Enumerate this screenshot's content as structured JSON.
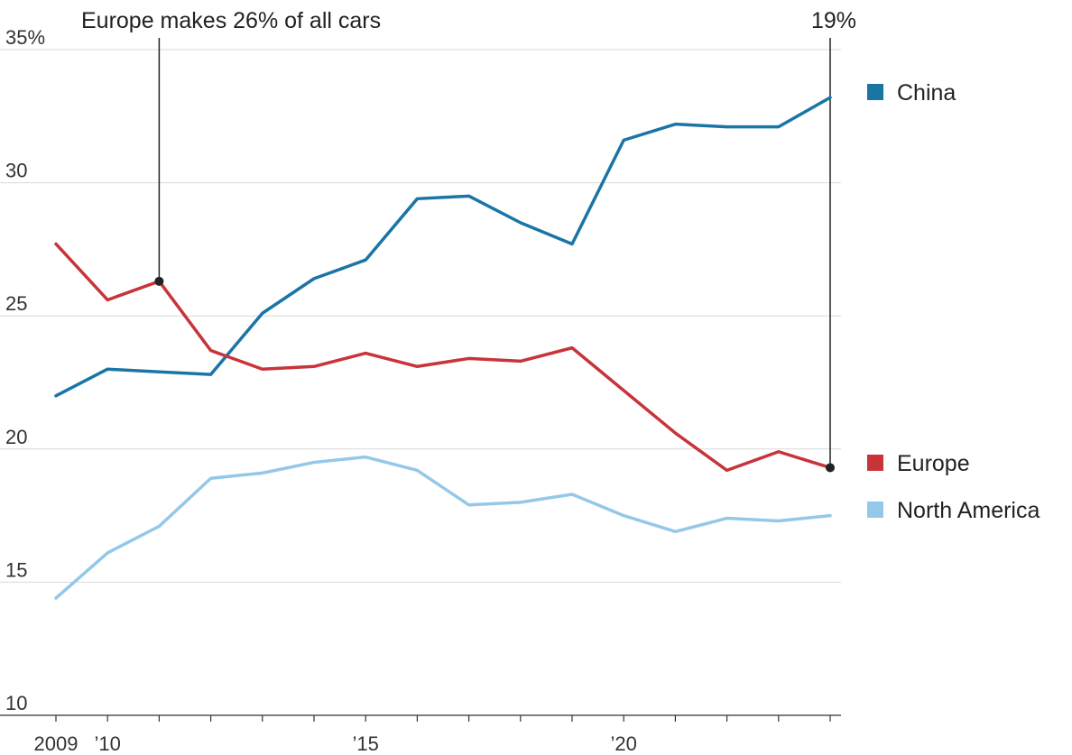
{
  "chart_data": {
    "type": "line",
    "title": "",
    "xlabel": "",
    "ylabel": "",
    "x": [
      2009,
      2010,
      2011,
      2012,
      2013,
      2014,
      2015,
      2016,
      2017,
      2018,
      2019,
      2020,
      2021,
      2022,
      2023,
      2024
    ],
    "x_tick_labels": [
      {
        "x": 2009,
        "label": "2009"
      },
      {
        "x": 2010,
        "label": "’10"
      },
      {
        "x": 2015,
        "label": "’15"
      },
      {
        "x": 2020,
        "label": "’20"
      }
    ],
    "y_tick_labels": [
      {
        "y": 35,
        "label": "35%"
      },
      {
        "y": 30,
        "label": "30"
      },
      {
        "y": 25,
        "label": "25"
      },
      {
        "y": 20,
        "label": "20"
      },
      {
        "y": 15,
        "label": "15"
      },
      {
        "y": 10,
        "label": "10"
      }
    ],
    "ylim": [
      10,
      35
    ],
    "xlim": [
      2009,
      2024
    ],
    "grid": true,
    "legend_position": "right",
    "series": [
      {
        "name": "China",
        "color": "#1a75a6",
        "values": [
          22.0,
          23.0,
          22.9,
          22.8,
          25.1,
          26.4,
          27.1,
          29.4,
          29.5,
          28.5,
          27.7,
          31.6,
          32.2,
          32.1,
          32.1,
          33.2
        ]
      },
      {
        "name": "Europe",
        "color": "#c7343a",
        "values": [
          27.7,
          25.6,
          26.3,
          23.7,
          23.0,
          23.1,
          23.6,
          23.1,
          23.4,
          23.3,
          23.8,
          22.2,
          20.6,
          19.2,
          19.9,
          19.3
        ]
      },
      {
        "name": "North America",
        "color": "#95c8e8",
        "values": [
          14.4,
          16.1,
          17.1,
          18.9,
          19.1,
          19.5,
          19.7,
          19.2,
          17.9,
          18.0,
          18.3,
          17.5,
          16.9,
          17.4,
          17.3,
          17.5
        ]
      }
    ],
    "annotations": [
      {
        "text": "Europe makes 26% of all cars",
        "x": 2011,
        "y": 26.3
      },
      {
        "text": "19%",
        "x": 2024,
        "y": 19.3
      }
    ]
  }
}
